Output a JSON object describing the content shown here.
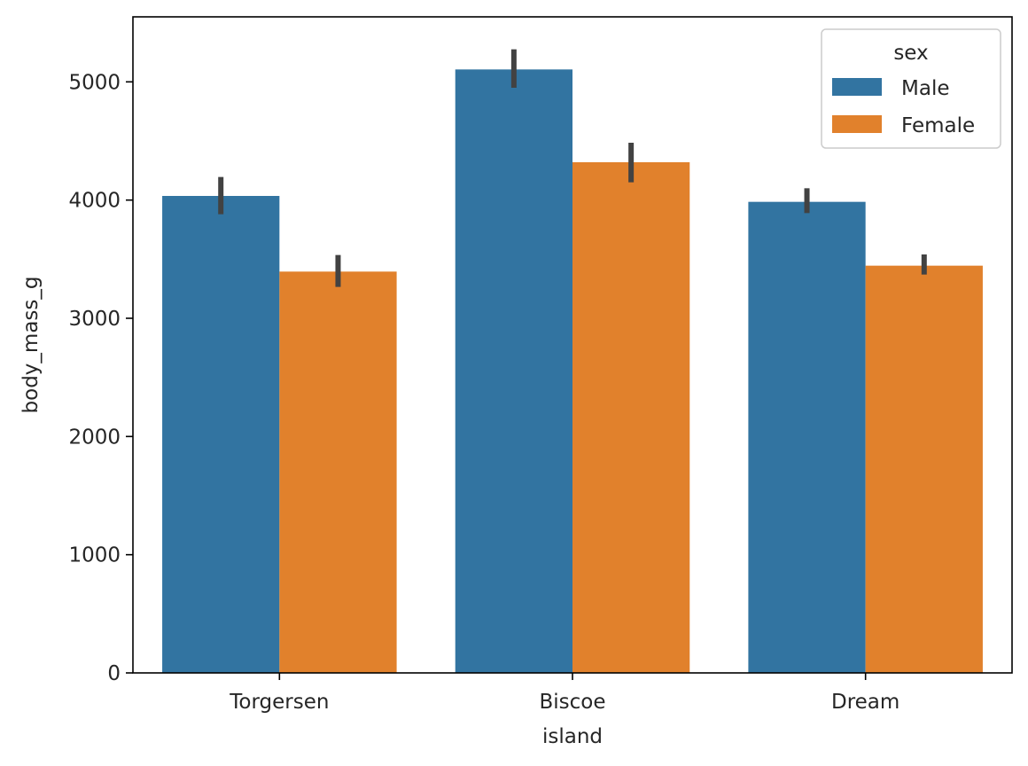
{
  "chart_data": {
    "type": "bar",
    "title": "",
    "xlabel": "island",
    "ylabel": "body_mass_g",
    "categories": [
      "Torgersen",
      "Biscoe",
      "Dream"
    ],
    "ylim": [
      0,
      5550
    ],
    "yticks": [
      0,
      1000,
      2000,
      3000,
      4000,
      5000
    ],
    "grid": false,
    "legend": {
      "title": "sex",
      "placement": "top-right"
    },
    "series": [
      {
        "name": "Male",
        "color": "#3274a1",
        "values": [
          4035,
          5105,
          3985
        ],
        "ci_low": [
          3880,
          4950,
          3890
        ],
        "ci_high": [
          4195,
          5275,
          4100
        ]
      },
      {
        "name": "Female",
        "color": "#e1812c",
        "values": [
          3395,
          4320,
          3445
        ],
        "ci_low": [
          3265,
          4150,
          3370
        ],
        "ci_high": [
          3535,
          4485,
          3540
        ]
      }
    ],
    "errorbar_color": "#424242"
  }
}
